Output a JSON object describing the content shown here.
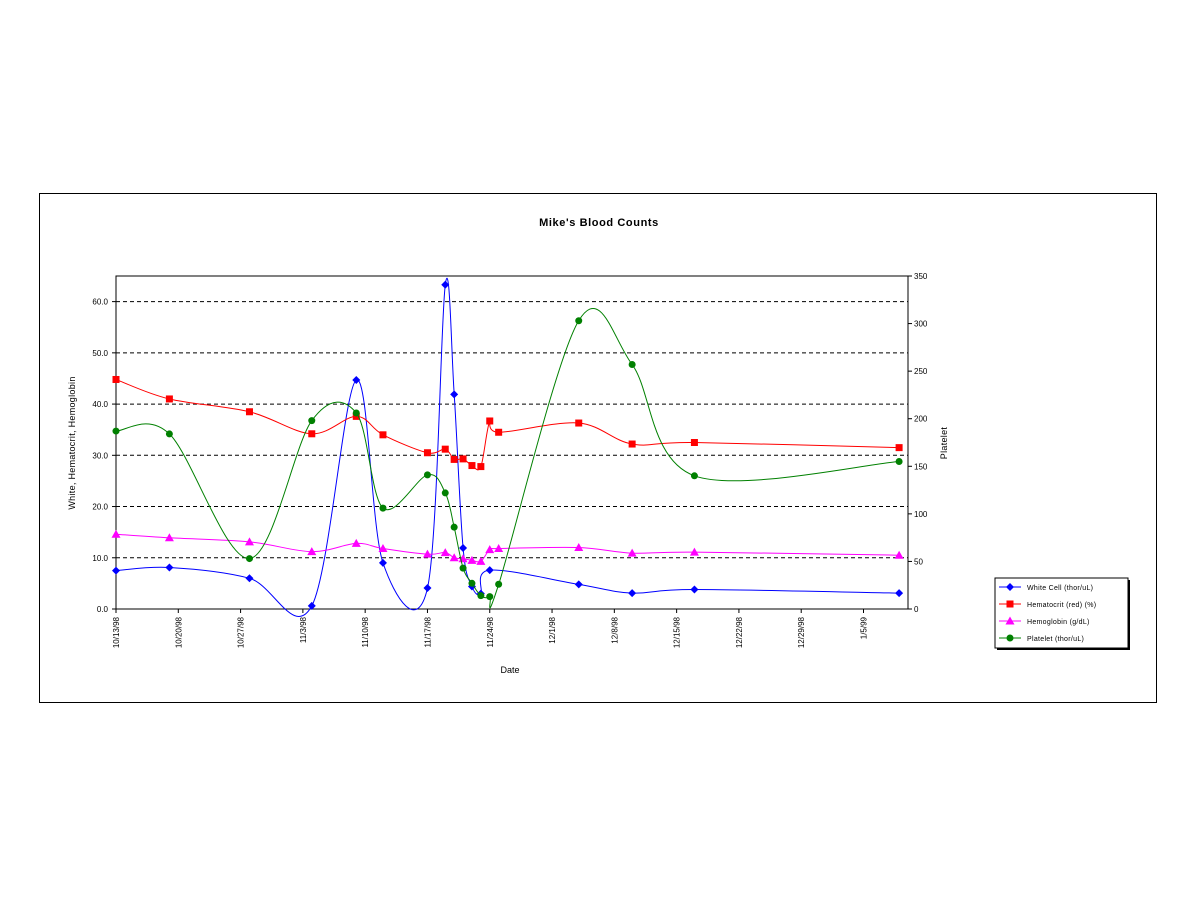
{
  "chart_data": {
    "type": "line",
    "title": "Mike's Blood Counts",
    "xlabel": "Date",
    "ylabel": "White, Hematocrit, Hemoglobin",
    "y2label": "Platelet",
    "ylim": [
      0,
      65
    ],
    "y2lim": [
      0,
      350
    ],
    "yticks": [
      "0.0",
      "10.0",
      "20.0",
      "30.0",
      "40.0",
      "50.0",
      "60.0"
    ],
    "y2ticks": [
      "0",
      "50",
      "100",
      "150",
      "200",
      "250",
      "300",
      "350"
    ],
    "xlim": [
      "1998-10-13",
      "1999-01-10"
    ],
    "xticks": [
      {
        "date": "1998-10-13",
        "label": "10/13/98"
      },
      {
        "date": "1998-10-20",
        "label": "10/20/98"
      },
      {
        "date": "1998-10-27",
        "label": "10/27/98"
      },
      {
        "date": "1998-11-03",
        "label": "11/3/98"
      },
      {
        "date": "1998-11-10",
        "label": "11/10/98"
      },
      {
        "date": "1998-11-17",
        "label": "11/17/98"
      },
      {
        "date": "1998-11-24",
        "label": "11/24/98"
      },
      {
        "date": "1998-12-01",
        "label": "12/1/98"
      },
      {
        "date": "1998-12-08",
        "label": "12/8/98"
      },
      {
        "date": "1998-12-15",
        "label": "12/15/98"
      },
      {
        "date": "1998-12-22",
        "label": "12/22/98"
      },
      {
        "date": "1998-12-29",
        "label": "12/29/98"
      },
      {
        "date": "1999-01-05",
        "label": "1/5/99"
      }
    ],
    "grid": "horizontal dashed",
    "legend": "right",
    "series": [
      {
        "name": "White Cell (thor/uL)",
        "axis": "left",
        "color": "#0000ff",
        "marker": "diamond",
        "x": [
          "1998-10-13",
          "1998-10-19",
          "1998-10-28",
          "1998-11-04",
          "1998-11-09",
          "1998-11-12",
          "1998-11-17",
          "1998-11-19",
          "1998-11-20",
          "1998-11-21",
          "1998-11-22",
          "1998-11-23",
          "1998-11-24",
          "1998-12-04",
          "1998-12-10",
          "1998-12-17",
          "1999-01-09"
        ],
        "y": [
          7.5,
          8.1,
          6.0,
          0.6,
          44.7,
          9.0,
          4.1,
          63.3,
          41.9,
          11.9,
          4.4,
          3.0,
          7.6,
          4.8,
          3.1,
          3.8,
          3.1
        ]
      },
      {
        "name": "Hematocrit (red) (%)",
        "axis": "left",
        "color": "#ff0000",
        "marker": "square",
        "x": [
          "1998-10-13",
          "1998-10-19",
          "1998-10-28",
          "1998-11-04",
          "1998-11-09",
          "1998-11-12",
          "1998-11-17",
          "1998-11-19",
          "1998-11-20",
          "1998-11-21",
          "1998-11-22",
          "1998-11-23",
          "1998-11-24",
          "1998-11-25",
          "1998-12-04",
          "1998-12-10",
          "1998-12-17",
          "1999-01-09"
        ],
        "y": [
          44.8,
          41.0,
          38.5,
          34.2,
          37.6,
          34.0,
          30.5,
          31.2,
          29.2,
          29.3,
          28.0,
          27.8,
          36.7,
          34.5,
          36.3,
          32.2,
          32.5,
          31.5
        ]
      },
      {
        "name": "Hemoglobin (g/dL)",
        "axis": "left",
        "color": "#ff00ff",
        "marker": "triangle",
        "x": [
          "1998-10-13",
          "1998-10-19",
          "1998-10-28",
          "1998-11-04",
          "1998-11-09",
          "1998-11-12",
          "1998-11-17",
          "1998-11-19",
          "1998-11-20",
          "1998-11-21",
          "1998-11-22",
          "1998-11-23",
          "1998-11-24",
          "1998-11-25",
          "1998-12-04",
          "1998-12-10",
          "1998-12-17",
          "1999-01-09"
        ],
        "y": [
          14.6,
          13.9,
          13.1,
          11.2,
          12.8,
          11.8,
          10.7,
          11.0,
          10.0,
          9.8,
          9.5,
          9.3,
          11.6,
          11.8,
          12.0,
          10.9,
          11.1,
          10.5
        ]
      },
      {
        "name": "Platelet (thor/uL)",
        "axis": "right",
        "color": "#008000",
        "marker": "circle",
        "x": [
          "1998-10-13",
          "1998-10-19",
          "1998-10-28",
          "1998-11-04",
          "1998-11-09",
          "1998-11-12",
          "1998-11-17",
          "1998-11-19",
          "1998-11-20",
          "1998-11-21",
          "1998-11-22",
          "1998-11-23",
          "1998-11-24",
          "1998-11-25",
          "1998-12-04",
          "1998-12-10",
          "1998-12-17",
          "1999-01-09"
        ],
        "y": [
          187,
          184,
          53,
          198,
          206,
          106,
          141,
          122,
          86,
          43,
          27,
          14,
          13,
          26,
          303,
          257,
          140,
          155
        ]
      }
    ]
  }
}
